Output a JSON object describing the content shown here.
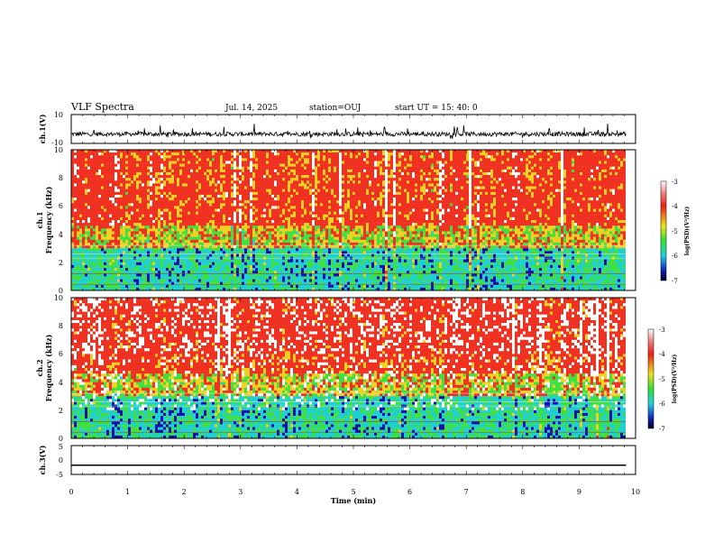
{
  "header": {
    "title": "VLF Spectra",
    "date": "Jul. 14, 2025",
    "station": "station=OUJ",
    "start": "start UT = 15: 40: 0"
  },
  "chart_data": [
    {
      "panel": "ch1-waveform",
      "type": "line",
      "ylabel": "ch.1(V)",
      "ylim": [
        -10,
        10
      ],
      "ytick_labels": [
        "10",
        "-10"
      ],
      "xlim": [
        0,
        10
      ],
      "x_end": 9.83,
      "baseline": -3.5,
      "description_of_signal": "noisy waveform mostly between -6 and -1 V"
    },
    {
      "panel": "ch1-spectrogram",
      "type": "heatmap",
      "ylabel_line1": "ch.1",
      "ylabel_line2": "Frequency (kHz)",
      "ylim": [
        0,
        10
      ],
      "ytick_labels": [
        "0",
        "2",
        "4",
        "6",
        "8",
        "10"
      ],
      "xlim": [
        0,
        10
      ],
      "x_end": 9.83,
      "colorbar": {
        "label": "log(PSD)(V²/Hz)",
        "range": [
          -7,
          -3
        ],
        "tick_labels": [
          "-3",
          "-4",
          "-5",
          "-6",
          "-7"
        ]
      }
    },
    {
      "panel": "ch2-spectrogram",
      "type": "heatmap",
      "ylabel_line1": "ch.2",
      "ylabel_line2": "Frequency (kHz)",
      "ylim": [
        0,
        10
      ],
      "ytick_labels": [
        "0",
        "2",
        "4",
        "6",
        "8",
        "10"
      ],
      "xlim": [
        0,
        10
      ],
      "x_end": 9.83,
      "colorbar": {
        "label": "log(PSD)(V²/Hz)",
        "range": [
          -7,
          -3
        ],
        "tick_labels": [
          "-3",
          "-4",
          "-5",
          "-6",
          "-7"
        ]
      }
    },
    {
      "panel": "ch3-waveform",
      "type": "line",
      "ylabel": "ch.3(V)",
      "ylim": [
        -5,
        5
      ],
      "ytick_labels": [
        "5",
        "0",
        "-5"
      ],
      "xlim": [
        0,
        10
      ],
      "x_end": 9.83,
      "constant_value": -1.8
    }
  ],
  "xaxis": {
    "label": "Time (min)",
    "tick_labels": [
      "0",
      "1",
      "2",
      "3",
      "4",
      "5",
      "6",
      "7",
      "8",
      "9",
      "10"
    ]
  },
  "colors": {
    "high": "#f03020",
    "mid_high": "#f0d020",
    "mid": "#40e040",
    "mid_low": "#20d0d0",
    "low": "#1010b0",
    "white": "#ffffff"
  }
}
